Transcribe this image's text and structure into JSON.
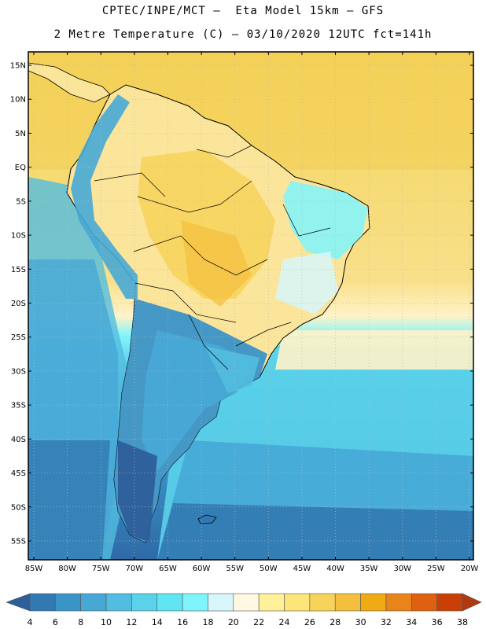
{
  "header": {
    "line1": "CPTEC/INPE/MCT –  Eta Model 15km – GFS",
    "line2": "2 Metre Temperature (C) – 03/10/2020 12UTC fct=141h"
  },
  "map": {
    "lat_labels": [
      "15N",
      "10N",
      "5N",
      "EQ",
      "5S",
      "10S",
      "15S",
      "20S",
      "25S",
      "30S",
      "35S",
      "40S",
      "45S",
      "50S",
      "55S"
    ],
    "lon_labels": [
      "85W",
      "80W",
      "75W",
      "70W",
      "65W",
      "60W",
      "55W",
      "50W",
      "45W",
      "40W",
      "35W",
      "30W",
      "25W",
      "20W"
    ],
    "ocean_color": "#f3d461",
    "land_color": "#fbe59a"
  },
  "colorbar": {
    "labels": [
      "4",
      "6",
      "8",
      "10",
      "12",
      "14",
      "16",
      "18",
      "20",
      "22",
      "24",
      "26",
      "28",
      "30",
      "32",
      "34",
      "36",
      "38"
    ],
    "colors": [
      "#2e5f9a",
      "#3279b3",
      "#3b94c7",
      "#47a8d6",
      "#52bde0",
      "#5ad2ea",
      "#60e6f2",
      "#7ff5fb",
      "#d7f7fb",
      "#fff8e2",
      "#fff199",
      "#fde57a",
      "#f7d35a",
      "#f3bf3c",
      "#efaa14",
      "#e8841a",
      "#de6010",
      "#c84008",
      "#b03a10"
    ]
  }
}
